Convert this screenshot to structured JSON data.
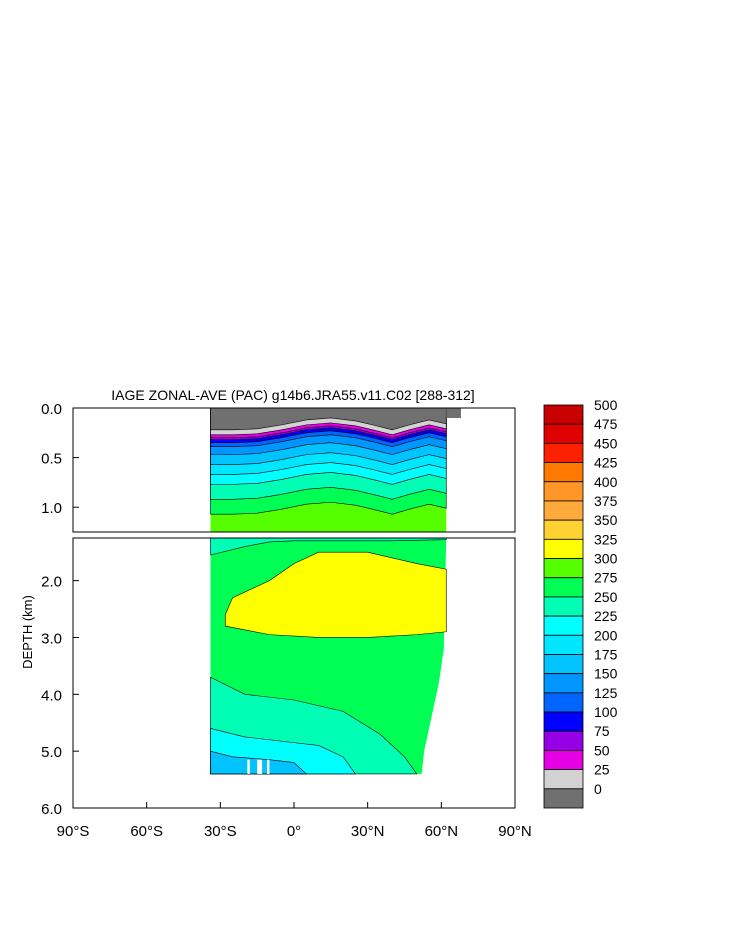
{
  "chart_data": {
    "type": "heatmap",
    "title": "IAGE ZONAL-AVE (PAC) g14b6.JRA55.v11.C02 [288-312]",
    "xlabel": "",
    "ylabel": "DEPTH (km)",
    "x_ticks": [
      "90°S",
      "60°S",
      "30°S",
      "0°",
      "30°N",
      "60°N",
      "90°N"
    ],
    "x_range": [
      -90,
      90
    ],
    "y_range_top_panel": [
      0.0,
      1.25
    ],
    "y_ticks_top_panel": [
      "0.0",
      "0.5",
      "1.0"
    ],
    "y_range_bottom_panel": [
      1.25,
      6.0
    ],
    "y_ticks_bottom_panel": [
      "2.0",
      "3.0",
      "4.0",
      "5.0",
      "6.0"
    ],
    "colorbar": {
      "labels": [
        "500",
        "475",
        "450",
        "425",
        "400",
        "375",
        "350",
        "325",
        "300",
        "275",
        "250",
        "225",
        "200",
        "175",
        "150",
        "125",
        "100",
        "75",
        "50",
        "25",
        "0"
      ],
      "colors": [
        "#c80000",
        "#e00000",
        "#ff2000",
        "#ff7800",
        "#ff9628",
        "#ffaa3c",
        "#ffd232",
        "#ffff00",
        "#55ff00",
        "#00ff55",
        "#00ffb4",
        "#00ffff",
        "#00e6ff",
        "#00c3ff",
        "#0096ff",
        "#0064ff",
        "#0000ff",
        "#9600e6",
        "#e600e6",
        "#d2d2d2",
        "#707070"
      ]
    },
    "grid": false,
    "legend": "right"
  }
}
